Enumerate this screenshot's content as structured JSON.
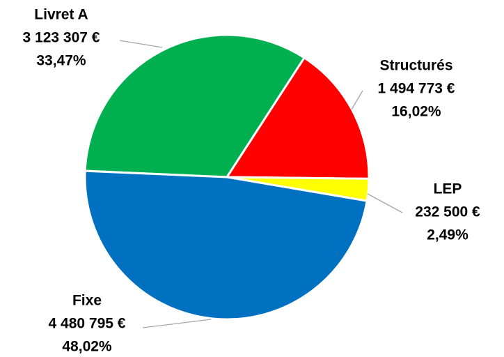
{
  "chart_data": {
    "type": "pie",
    "categories": [
      "Livret A",
      "Structurés",
      "LEP",
      "Fixe"
    ],
    "values": [
      3123307,
      1494773,
      232500,
      4480795
    ],
    "value_labels": [
      "3 123 307 €",
      "1 494 773 €",
      "232 500 €",
      "4 480 795 €"
    ],
    "percents": [
      {
        "value": 33.47,
        "label": "33,47%"
      },
      {
        "value": 16.02,
        "label": "16,02%"
      },
      {
        "value": 2.49,
        "label": "2,49%"
      },
      {
        "value": 48.02,
        "label": "48,02%"
      }
    ],
    "colors": [
      "#00b050",
      "#ff0000",
      "#ffff00",
      "#0070c0"
    ]
  }
}
